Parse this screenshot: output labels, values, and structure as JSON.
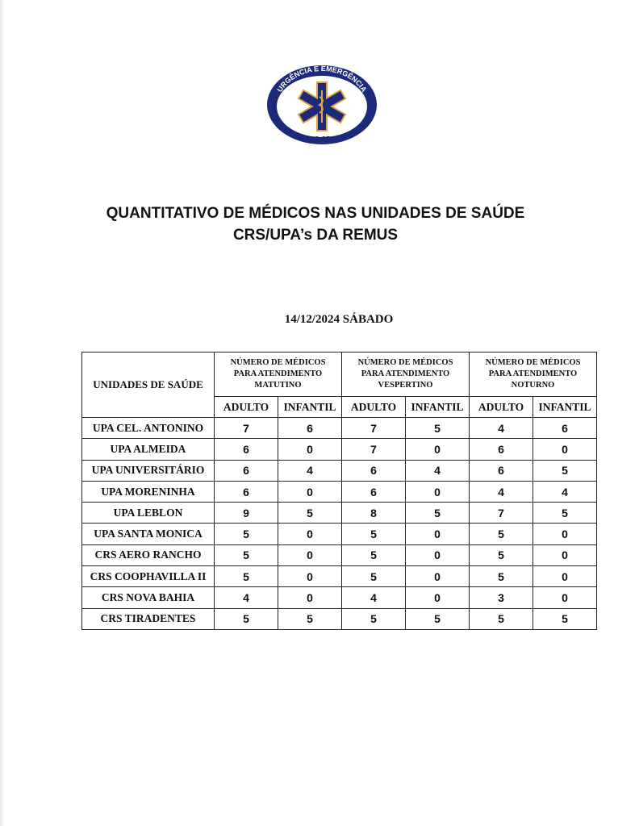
{
  "logo": {
    "top_text": "URGÊNCIA E EMERGÊNCIA",
    "bottom_text": "PMCG-SESAU",
    "colors": {
      "navy": "#1d2a7a",
      "gold": "#d9a441"
    }
  },
  "title_line1": "QUANTITATIVO DE MÉDICOS NAS UNIDADES DE SAÚDE",
  "title_line2": "CRS/UPA’s DA REMUS",
  "date": "14/12/2024 SÁBADO",
  "table": {
    "unit_header": "UNIDADES DE SAÚDE",
    "groups": [
      "NÚMERO DE MÉDICOS PARA ATENDIMENTO MATUTINO",
      "NÚMERO DE MÉDICOS PARA ATENDIMENTO VESPERTINO",
      "NÚMERO DE MÉDICOS PARA ATENDIMENTO NOTURNO"
    ],
    "sub": [
      "ADULTO",
      "INFANTIL",
      "ADULTO",
      "INFANTIL",
      "ADULTO",
      "INFANTIL"
    ],
    "rows": [
      {
        "name": "UPA CEL. ANTONINO",
        "v": [
          "7",
          "6",
          "7",
          "5",
          "4",
          "6"
        ]
      },
      {
        "name": "UPA ALMEIDA",
        "v": [
          "6",
          "0",
          "7",
          "0",
          "6",
          "0"
        ]
      },
      {
        "name": "UPA UNIVERSITÁRIO",
        "v": [
          "6",
          "4",
          "6",
          "4",
          "6",
          "5"
        ]
      },
      {
        "name": "UPA MORENINHA",
        "v": [
          "6",
          "0",
          "6",
          "0",
          "4",
          "4"
        ]
      },
      {
        "name": "UPA LEBLON",
        "v": [
          "9",
          "5",
          "8",
          "5",
          "7",
          "5"
        ]
      },
      {
        "name": "UPA SANTA MONICA",
        "v": [
          "5",
          "0",
          "5",
          "0",
          "5",
          "0"
        ]
      },
      {
        "name": "CRS AERO RANCHO",
        "v": [
          "5",
          "0",
          "5",
          "0",
          "5",
          "0"
        ]
      },
      {
        "name": "CRS COOPHAVILLA II",
        "v": [
          "5",
          "0",
          "5",
          "0",
          "5",
          "0"
        ]
      },
      {
        "name": "CRS NOVA BAHIA",
        "v": [
          "4",
          "0",
          "4",
          "0",
          "3",
          "0"
        ]
      },
      {
        "name": "CRS TIRADENTES",
        "v": [
          "5",
          "5",
          "5",
          "5",
          "5",
          "5"
        ]
      }
    ]
  }
}
